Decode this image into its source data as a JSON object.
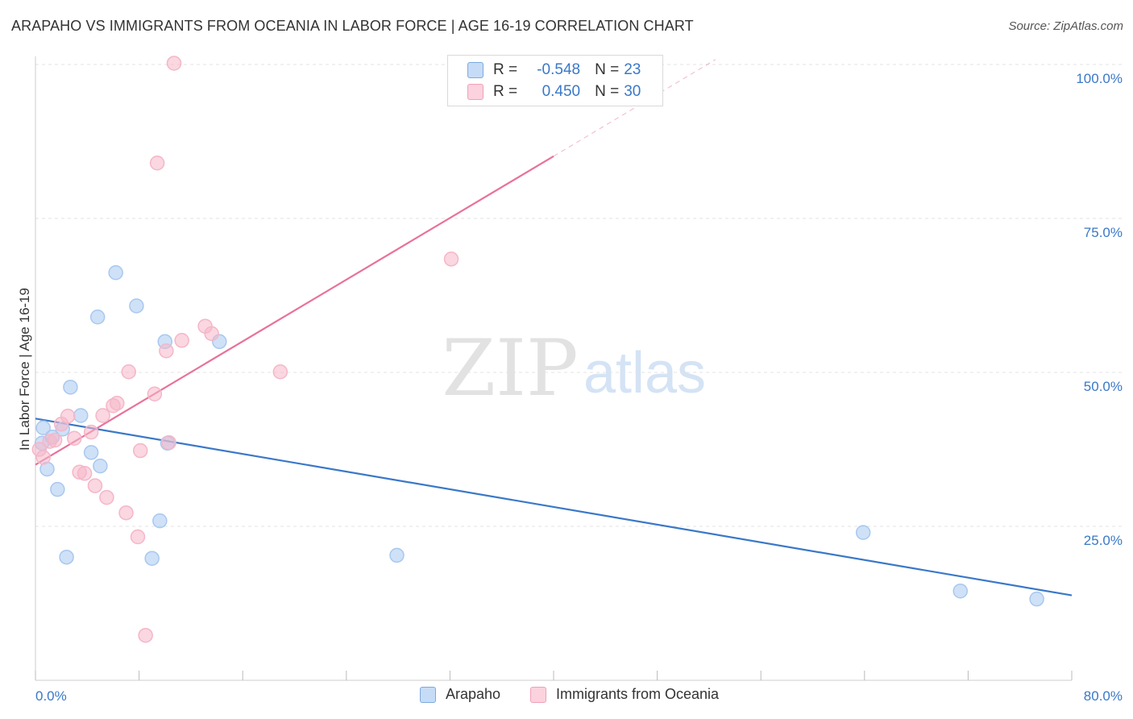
{
  "header": {
    "title": "ARAPAHO VS IMMIGRANTS FROM OCEANIA IN LABOR FORCE | AGE 16-19 CORRELATION CHART",
    "source": "Source: ZipAtlas.com"
  },
  "watermark": {
    "zip": "ZIP",
    "atlas": "atlas"
  },
  "stats_legend": [
    {
      "r_label": "R =",
      "r_value": "-0.548",
      "n_label": "N =",
      "n_value": "23",
      "color": "#a8c8f0"
    },
    {
      "r_label": "R =",
      "r_value": "0.450",
      "n_label": "N =",
      "n_value": "30",
      "color": "#f5b6c8"
    }
  ],
  "chart_data": {
    "type": "scatter",
    "title": "ARAPAHO VS IMMIGRANTS FROM OCEANIA IN LABOR FORCE | AGE 16-19 CORRELATION CHART",
    "xlabel": "",
    "ylabel": "In Labor Force | Age 16-19",
    "xlim": [
      0,
      80
    ],
    "ylim": [
      0,
      100
    ],
    "x_tick_labels": [
      "0.0%",
      "80.0%"
    ],
    "y_ticks": [
      25,
      50,
      75,
      100
    ],
    "y_tick_labels": [
      "25.0%",
      "50.0%",
      "75.0%",
      "100.0%"
    ],
    "grid": true,
    "legend_position": "bottom-center",
    "series": [
      {
        "name": "Arapaho",
        "color": "#3a78c8",
        "fill": "#a8c8f0",
        "points": [
          {
            "x": 0.5,
            "y": 38.5
          },
          {
            "x": 0.6,
            "y": 41.0
          },
          {
            "x": 0.9,
            "y": 34.3
          },
          {
            "x": 1.3,
            "y": 39.5
          },
          {
            "x": 1.7,
            "y": 31.0
          },
          {
            "x": 2.1,
            "y": 40.8
          },
          {
            "x": 2.4,
            "y": 20.0
          },
          {
            "x": 2.7,
            "y": 47.6
          },
          {
            "x": 3.5,
            "y": 43.0
          },
          {
            "x": 4.3,
            "y": 37.0
          },
          {
            "x": 4.8,
            "y": 59.0
          },
          {
            "x": 5.0,
            "y": 34.8
          },
          {
            "x": 6.2,
            "y": 66.2
          },
          {
            "x": 7.8,
            "y": 60.8
          },
          {
            "x": 9.0,
            "y": 19.8
          },
          {
            "x": 9.6,
            "y": 25.9
          },
          {
            "x": 10.0,
            "y": 55.0
          },
          {
            "x": 10.2,
            "y": 38.5
          },
          {
            "x": 14.2,
            "y": 55.0
          },
          {
            "x": 27.9,
            "y": 20.3
          },
          {
            "x": 63.9,
            "y": 24.0
          },
          {
            "x": 71.4,
            "y": 14.5
          },
          {
            "x": 77.3,
            "y": 13.2
          }
        ],
        "trend": {
          "x1": 0,
          "y1": 42.5,
          "x2": 80,
          "y2": 13.8
        }
      },
      {
        "name": "Immigrants from Oceania",
        "color": "#e8729a",
        "fill": "#f5b6c8",
        "points": [
          {
            "x": 0.3,
            "y": 37.5
          },
          {
            "x": 0.6,
            "y": 36.2
          },
          {
            "x": 1.1,
            "y": 38.8
          },
          {
            "x": 1.5,
            "y": 39.0
          },
          {
            "x": 2.0,
            "y": 41.6
          },
          {
            "x": 2.5,
            "y": 42.9
          },
          {
            "x": 3.0,
            "y": 39.3
          },
          {
            "x": 3.4,
            "y": 33.8
          },
          {
            "x": 3.8,
            "y": 33.6
          },
          {
            "x": 4.3,
            "y": 40.3
          },
          {
            "x": 4.6,
            "y": 31.6
          },
          {
            "x": 5.2,
            "y": 43.0
          },
          {
            "x": 5.5,
            "y": 29.7
          },
          {
            "x": 6.0,
            "y": 44.6
          },
          {
            "x": 6.3,
            "y": 45.0
          },
          {
            "x": 7.0,
            "y": 27.2
          },
          {
            "x": 7.2,
            "y": 50.1
          },
          {
            "x": 7.9,
            "y": 23.3
          },
          {
            "x": 8.1,
            "y": 37.3
          },
          {
            "x": 8.5,
            "y": 7.3
          },
          {
            "x": 9.2,
            "y": 46.5
          },
          {
            "x": 9.4,
            "y": 84.0
          },
          {
            "x": 10.1,
            "y": 53.5
          },
          {
            "x": 10.3,
            "y": 38.6
          },
          {
            "x": 10.7,
            "y": 100.2
          },
          {
            "x": 11.3,
            "y": 55.2
          },
          {
            "x": 13.1,
            "y": 57.5
          },
          {
            "x": 13.6,
            "y": 56.3
          },
          {
            "x": 18.9,
            "y": 50.1
          },
          {
            "x": 32.1,
            "y": 68.4
          }
        ],
        "trend": {
          "x1": 0,
          "y1": 35.0,
          "x2": 40,
          "y2": 85.1
        },
        "trend_extension": {
          "x1": 40,
          "y1": 85.1,
          "x2": 52.5,
          "y2": 100.8
        }
      }
    ]
  }
}
